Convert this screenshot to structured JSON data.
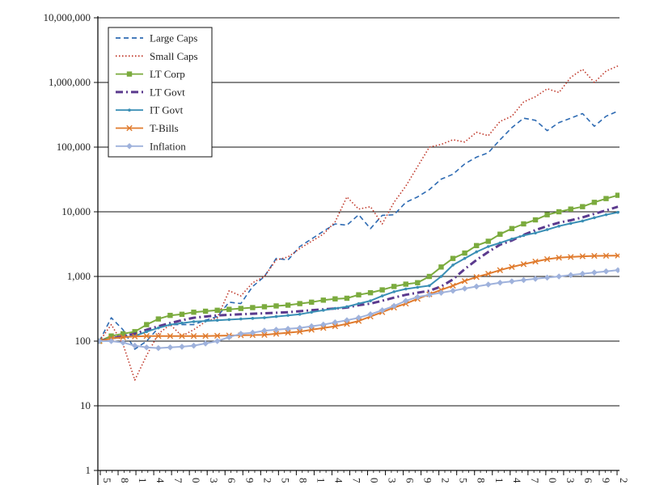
{
  "chart_data": {
    "type": "line",
    "title": "",
    "xlabel": "",
    "ylabel": "",
    "y_scale": "log",
    "ylim": [
      1,
      10000000
    ],
    "y_ticks": [
      {
        "value": 1,
        "label": "1"
      },
      {
        "value": 10,
        "label": "10"
      },
      {
        "value": 100,
        "label": "100"
      },
      {
        "value": 1000,
        "label": "1,000"
      },
      {
        "value": 10000,
        "label": "10,000"
      },
      {
        "value": 100000,
        "label": "100,000"
      },
      {
        "value": 1000000,
        "label": "1,000,000"
      },
      {
        "value": 10000000,
        "label": "10,000,000"
      }
    ],
    "x_tick_labels": [
      "5",
      "8",
      "1",
      "4",
      "7",
      "0",
      "3",
      "6",
      "9",
      "2",
      "5",
      "8",
      "1",
      "4",
      "7",
      "0",
      "3",
      "6",
      "9",
      "2",
      "5",
      "8",
      "1",
      "4",
      "7",
      "0",
      "3",
      "6",
      "9",
      "2"
    ],
    "grid": "horizontal",
    "legend_position": "top-left",
    "series": [
      {
        "name": "Large Caps",
        "color": "#2e6bb3",
        "style": "dashed",
        "marker": "none",
        "values": [
          100,
          230,
          150,
          75,
          100,
          160,
          180,
          180,
          180,
          210,
          240,
          400,
          380,
          700,
          1000,
          1900,
          1800,
          2900,
          3800,
          5000,
          6500,
          6200,
          9000,
          5500,
          8800,
          9000,
          14000,
          17000,
          22000,
          32000,
          38000,
          55000,
          70000,
          82000,
          130000,
          200000,
          280000,
          260000,
          180000,
          240000,
          280000,
          330000,
          210000,
          300000,
          360000
        ]
      },
      {
        "name": "Small Caps",
        "color": "#c0392b",
        "style": "dotted",
        "marker": "none",
        "values": [
          100,
          180,
          90,
          25,
          60,
          130,
          180,
          120,
          150,
          200,
          230,
          600,
          500,
          800,
          1000,
          1800,
          2000,
          2700,
          3500,
          4500,
          7000,
          17000,
          11000,
          12000,
          6500,
          14000,
          25000,
          50000,
          100000,
          110000,
          130000,
          120000,
          170000,
          150000,
          250000,
          300000,
          500000,
          600000,
          800000,
          700000,
          1200000,
          1600000,
          1000000,
          1500000,
          1800000
        ]
      },
      {
        "name": "LT Corp",
        "color": "#7bab3e",
        "style": "solid",
        "marker": "square",
        "values": [
          100,
          120,
          130,
          140,
          180,
          220,
          250,
          260,
          280,
          290,
          300,
          310,
          320,
          330,
          340,
          350,
          360,
          380,
          400,
          430,
          450,
          460,
          520,
          560,
          620,
          700,
          760,
          800,
          1000,
          1400,
          1900,
          2300,
          3000,
          3500,
          4500,
          5500,
          6500,
          7500,
          9000,
          10000,
          11000,
          12000,
          14000,
          16000,
          18000
        ]
      },
      {
        "name": "LT Govt",
        "color": "#5b3a8e",
        "style": "dashdot",
        "marker": "none",
        "values": [
          100,
          110,
          120,
          130,
          150,
          170,
          190,
          210,
          230,
          240,
          250,
          255,
          260,
          265,
          270,
          275,
          280,
          290,
          300,
          310,
          320,
          330,
          360,
          380,
          420,
          470,
          520,
          560,
          600,
          700,
          900,
          1300,
          1800,
          2400,
          3100,
          3600,
          4400,
          5200,
          6000,
          6800,
          7400,
          8200,
          9300,
          10500,
          12000
        ]
      },
      {
        "name": "IT Govt",
        "color": "#3a8fb5",
        "style": "solid",
        "marker": "dot",
        "values": [
          100,
          110,
          115,
          120,
          140,
          160,
          180,
          190,
          200,
          205,
          210,
          215,
          220,
          225,
          230,
          240,
          250,
          260,
          280,
          300,
          320,
          340,
          380,
          420,
          500,
          580,
          640,
          680,
          720,
          1000,
          1500,
          1900,
          2400,
          2900,
          3300,
          3800,
          4300,
          4700,
          5300,
          6000,
          6600,
          7200,
          8100,
          9000,
          9800
        ]
      },
      {
        "name": "T-Bills",
        "color": "#e07b2e",
        "style": "solid",
        "marker": "x",
        "values": [
          100,
          110,
          115,
          118,
          120,
          120,
          120,
          120,
          120,
          120,
          121,
          122,
          123,
          124,
          125,
          130,
          135,
          140,
          150,
          160,
          170,
          185,
          205,
          240,
          280,
          330,
          380,
          450,
          530,
          620,
          720,
          850,
          980,
          1100,
          1250,
          1400,
          1550,
          1700,
          1850,
          1950,
          2000,
          2050,
          2080,
          2090,
          2100
        ]
      },
      {
        "name": "Inflation",
        "color": "#9fb2dc",
        "style": "solid",
        "marker": "diamond",
        "values": [
          100,
          100,
          95,
          85,
          80,
          78,
          80,
          82,
          85,
          92,
          100,
          115,
          130,
          135,
          145,
          150,
          155,
          160,
          170,
          180,
          195,
          210,
          230,
          260,
          300,
          350,
          420,
          480,
          520,
          560,
          600,
          650,
          700,
          750,
          800,
          840,
          880,
          920,
          960,
          1000,
          1050,
          1100,
          1150,
          1200,
          1250
        ]
      }
    ]
  }
}
